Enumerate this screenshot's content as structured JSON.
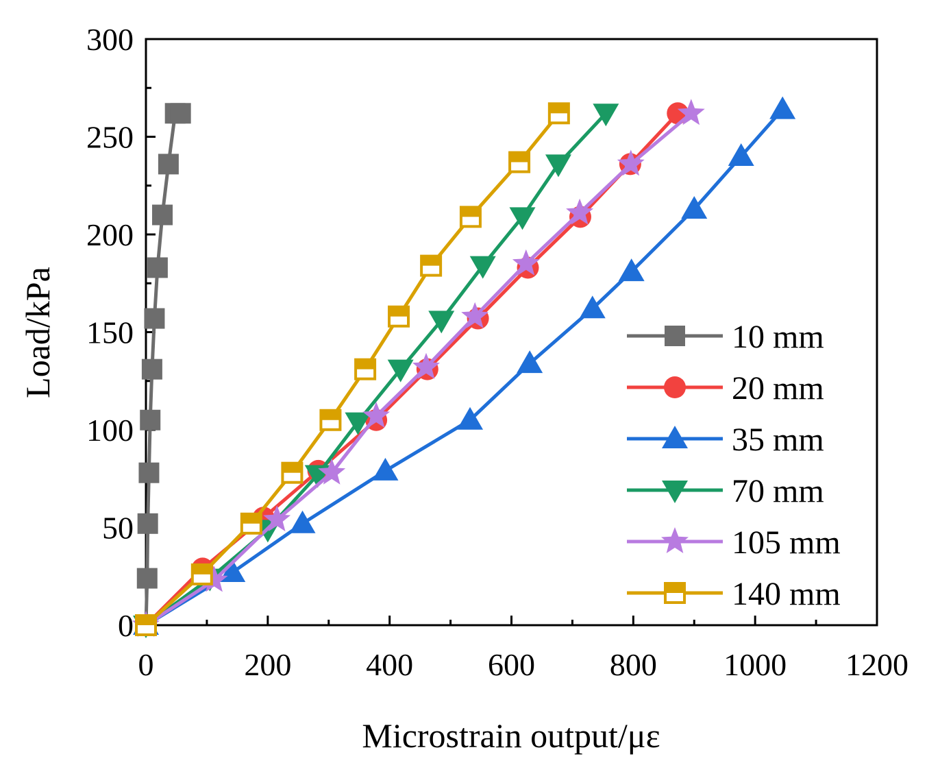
{
  "chart_data": {
    "type": "line",
    "title": "",
    "xlabel": "Microstrain output/με",
    "ylabel": "Load/kPa",
    "xlim": [
      0,
      1200
    ],
    "ylim": [
      0,
      300
    ],
    "xticks": [
      0,
      200,
      400,
      600,
      800,
      1000,
      1200
    ],
    "yticks": [
      0,
      50,
      100,
      150,
      200,
      250,
      300
    ],
    "xtick_labels": [
      "0",
      "200",
      "400",
      "600",
      "800",
      "1000",
      "1200"
    ],
    "ytick_labels": [
      "0",
      "50",
      "100",
      "150",
      "200",
      "250",
      "300"
    ],
    "grid": false,
    "legend_position": "lower-right",
    "series": [
      {
        "name": "10 mm",
        "color": "#6d6d6d",
        "marker": "square-filled",
        "x": [
          0,
          2,
          3,
          5,
          7,
          10,
          14,
          19,
          27,
          37,
          48,
          57
        ],
        "y": [
          0,
          24,
          52,
          78,
          105,
          131,
          157,
          183,
          210,
          236,
          262,
          262
        ]
      },
      {
        "name": "20 mm",
        "color": "#f2423f",
        "marker": "circle",
        "x": [
          0,
          93,
          193,
          283,
          378,
          462,
          545,
          627,
          713,
          795,
          873
        ],
        "y": [
          0,
          29,
          55,
          79,
          105,
          131,
          157,
          183,
          209,
          236,
          262
        ]
      },
      {
        "name": "35 mm",
        "color": "#1f6fd8",
        "marker": "triangle-up",
        "x": [
          0,
          142,
          257,
          393,
          532,
          630,
          733,
          797,
          900,
          977,
          1045
        ],
        "y": [
          0,
          27,
          52,
          79,
          105,
          134,
          162,
          181,
          213,
          240,
          264
        ]
      },
      {
        "name": "70 mm",
        "color": "#1a9a63",
        "marker": "triangle-down",
        "x": [
          0,
          105,
          200,
          282,
          348,
          418,
          485,
          553,
          618,
          677,
          755
        ],
        "y": [
          0,
          24,
          49,
          77,
          104,
          131,
          156,
          184,
          209,
          236,
          262
        ]
      },
      {
        "name": "105 mm",
        "color": "#b87be0",
        "marker": "star",
        "x": [
          0,
          112,
          215,
          305,
          378,
          460,
          540,
          624,
          712,
          796,
          895
        ],
        "y": [
          0,
          23,
          54,
          78,
          107,
          132,
          158,
          185,
          211,
          236,
          262
        ]
      },
      {
        "name": "140 mm",
        "color": "#d9a100",
        "marker": "square-half",
        "x": [
          0,
          92,
          173,
          240,
          303,
          360,
          415,
          468,
          533,
          613,
          678
        ],
        "y": [
          0,
          26,
          52,
          78,
          105,
          131,
          158,
          184,
          209,
          237,
          262
        ]
      }
    ]
  }
}
